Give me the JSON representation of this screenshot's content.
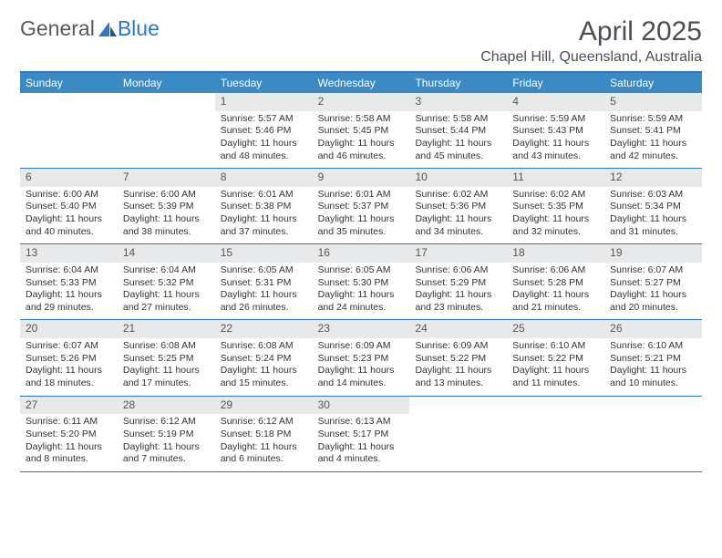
{
  "logo": {
    "part1": "General",
    "part2": "Blue"
  },
  "title": {
    "month": "April 2025",
    "location": "Chapel Hill, Queensland, Australia"
  },
  "colors": {
    "accent": "#2f78bd",
    "header_bg": "#3b8ac4",
    "daynum_bg": "#e7e9ea",
    "text": "#333333",
    "title_text": "#4a4f55"
  },
  "day_headers": [
    "Sunday",
    "Monday",
    "Tuesday",
    "Wednesday",
    "Thursday",
    "Friday",
    "Saturday"
  ],
  "weeks": [
    [
      {
        "num": "",
        "empty": true
      },
      {
        "num": "",
        "empty": true
      },
      {
        "num": "1",
        "sunrise": "Sunrise: 5:57 AM",
        "sunset": "Sunset: 5:46 PM",
        "daylight": "Daylight: 11 hours and 48 minutes."
      },
      {
        "num": "2",
        "sunrise": "Sunrise: 5:58 AM",
        "sunset": "Sunset: 5:45 PM",
        "daylight": "Daylight: 11 hours and 46 minutes."
      },
      {
        "num": "3",
        "sunrise": "Sunrise: 5:58 AM",
        "sunset": "Sunset: 5:44 PM",
        "daylight": "Daylight: 11 hours and 45 minutes."
      },
      {
        "num": "4",
        "sunrise": "Sunrise: 5:59 AM",
        "sunset": "Sunset: 5:43 PM",
        "daylight": "Daylight: 11 hours and 43 minutes."
      },
      {
        "num": "5",
        "sunrise": "Sunrise: 5:59 AM",
        "sunset": "Sunset: 5:41 PM",
        "daylight": "Daylight: 11 hours and 42 minutes."
      }
    ],
    [
      {
        "num": "6",
        "sunrise": "Sunrise: 6:00 AM",
        "sunset": "Sunset: 5:40 PM",
        "daylight": "Daylight: 11 hours and 40 minutes."
      },
      {
        "num": "7",
        "sunrise": "Sunrise: 6:00 AM",
        "sunset": "Sunset: 5:39 PM",
        "daylight": "Daylight: 11 hours and 38 minutes."
      },
      {
        "num": "8",
        "sunrise": "Sunrise: 6:01 AM",
        "sunset": "Sunset: 5:38 PM",
        "daylight": "Daylight: 11 hours and 37 minutes."
      },
      {
        "num": "9",
        "sunrise": "Sunrise: 6:01 AM",
        "sunset": "Sunset: 5:37 PM",
        "daylight": "Daylight: 11 hours and 35 minutes."
      },
      {
        "num": "10",
        "sunrise": "Sunrise: 6:02 AM",
        "sunset": "Sunset: 5:36 PM",
        "daylight": "Daylight: 11 hours and 34 minutes."
      },
      {
        "num": "11",
        "sunrise": "Sunrise: 6:02 AM",
        "sunset": "Sunset: 5:35 PM",
        "daylight": "Daylight: 11 hours and 32 minutes."
      },
      {
        "num": "12",
        "sunrise": "Sunrise: 6:03 AM",
        "sunset": "Sunset: 5:34 PM",
        "daylight": "Daylight: 11 hours and 31 minutes."
      }
    ],
    [
      {
        "num": "13",
        "sunrise": "Sunrise: 6:04 AM",
        "sunset": "Sunset: 5:33 PM",
        "daylight": "Daylight: 11 hours and 29 minutes."
      },
      {
        "num": "14",
        "sunrise": "Sunrise: 6:04 AM",
        "sunset": "Sunset: 5:32 PM",
        "daylight": "Daylight: 11 hours and 27 minutes."
      },
      {
        "num": "15",
        "sunrise": "Sunrise: 6:05 AM",
        "sunset": "Sunset: 5:31 PM",
        "daylight": "Daylight: 11 hours and 26 minutes."
      },
      {
        "num": "16",
        "sunrise": "Sunrise: 6:05 AM",
        "sunset": "Sunset: 5:30 PM",
        "daylight": "Daylight: 11 hours and 24 minutes."
      },
      {
        "num": "17",
        "sunrise": "Sunrise: 6:06 AM",
        "sunset": "Sunset: 5:29 PM",
        "daylight": "Daylight: 11 hours and 23 minutes."
      },
      {
        "num": "18",
        "sunrise": "Sunrise: 6:06 AM",
        "sunset": "Sunset: 5:28 PM",
        "daylight": "Daylight: 11 hours and 21 minutes."
      },
      {
        "num": "19",
        "sunrise": "Sunrise: 6:07 AM",
        "sunset": "Sunset: 5:27 PM",
        "daylight": "Daylight: 11 hours and 20 minutes."
      }
    ],
    [
      {
        "num": "20",
        "sunrise": "Sunrise: 6:07 AM",
        "sunset": "Sunset: 5:26 PM",
        "daylight": "Daylight: 11 hours and 18 minutes."
      },
      {
        "num": "21",
        "sunrise": "Sunrise: 6:08 AM",
        "sunset": "Sunset: 5:25 PM",
        "daylight": "Daylight: 11 hours and 17 minutes."
      },
      {
        "num": "22",
        "sunrise": "Sunrise: 6:08 AM",
        "sunset": "Sunset: 5:24 PM",
        "daylight": "Daylight: 11 hours and 15 minutes."
      },
      {
        "num": "23",
        "sunrise": "Sunrise: 6:09 AM",
        "sunset": "Sunset: 5:23 PM",
        "daylight": "Daylight: 11 hours and 14 minutes."
      },
      {
        "num": "24",
        "sunrise": "Sunrise: 6:09 AM",
        "sunset": "Sunset: 5:22 PM",
        "daylight": "Daylight: 11 hours and 13 minutes."
      },
      {
        "num": "25",
        "sunrise": "Sunrise: 6:10 AM",
        "sunset": "Sunset: 5:22 PM",
        "daylight": "Daylight: 11 hours and 11 minutes."
      },
      {
        "num": "26",
        "sunrise": "Sunrise: 6:10 AM",
        "sunset": "Sunset: 5:21 PM",
        "daylight": "Daylight: 11 hours and 10 minutes."
      }
    ],
    [
      {
        "num": "27",
        "sunrise": "Sunrise: 6:11 AM",
        "sunset": "Sunset: 5:20 PM",
        "daylight": "Daylight: 11 hours and 8 minutes."
      },
      {
        "num": "28",
        "sunrise": "Sunrise: 6:12 AM",
        "sunset": "Sunset: 5:19 PM",
        "daylight": "Daylight: 11 hours and 7 minutes."
      },
      {
        "num": "29",
        "sunrise": "Sunrise: 6:12 AM",
        "sunset": "Sunset: 5:18 PM",
        "daylight": "Daylight: 11 hours and 6 minutes."
      },
      {
        "num": "30",
        "sunrise": "Sunrise: 6:13 AM",
        "sunset": "Sunset: 5:17 PM",
        "daylight": "Daylight: 11 hours and 4 minutes."
      },
      {
        "num": "",
        "empty": true
      },
      {
        "num": "",
        "empty": true
      },
      {
        "num": "",
        "empty": true
      }
    ]
  ]
}
